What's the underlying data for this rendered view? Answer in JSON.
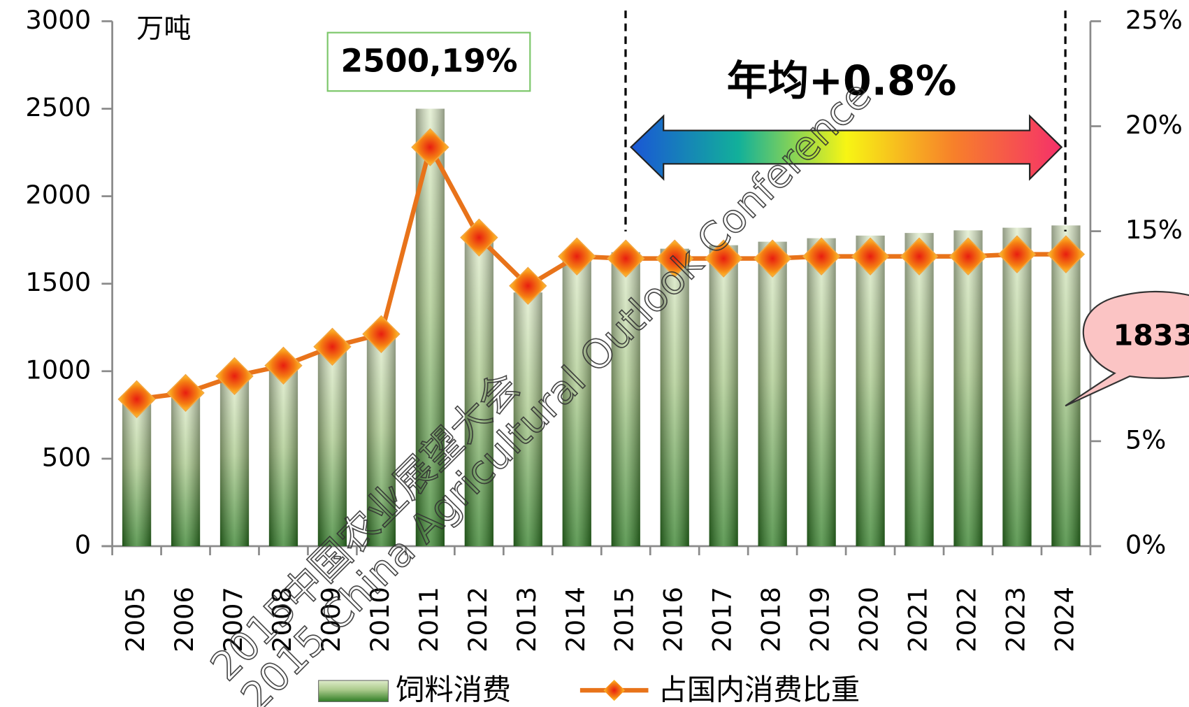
{
  "chart_data": {
    "type": "bar_line",
    "y_axis_unit": "万吨",
    "categories": [
      "2005",
      "2006",
      "2007",
      "2008",
      "2009",
      "2010",
      "2011",
      "2012",
      "2013",
      "2014",
      "2015",
      "2016",
      "2017",
      "2018",
      "2019",
      "2020",
      "2021",
      "2022",
      "2023",
      "2024"
    ],
    "series": [
      {
        "name": "饲料消费",
        "type": "bar",
        "color": "#2f7d24",
        "values": [
          845,
          860,
          950,
          1030,
          1120,
          1200,
          2500,
          1750,
          1450,
          1660,
          1680,
          1700,
          1720,
          1740,
          1760,
          1775,
          1790,
          1805,
          1820,
          1833
        ]
      },
      {
        "name": "占国内消费比重",
        "type": "line",
        "axis": "y2",
        "color": "#e8731a",
        "values": [
          7.0,
          7.3,
          8.1,
          8.6,
          9.5,
          10.1,
          19,
          14.7,
          12.4,
          13.8,
          13.7,
          13.7,
          13.7,
          13.7,
          13.8,
          13.8,
          13.8,
          13.8,
          13.9,
          13.9
        ]
      }
    ],
    "ylim": [
      0,
      3000
    ],
    "yticks": [
      0,
      500,
      1000,
      1500,
      2000,
      2500,
      3000
    ],
    "y2lim": [
      0,
      25
    ],
    "y2ticks": [
      {
        "value": 0,
        "label": "0%"
      },
      {
        "value": 5,
        "label": "5%"
      },
      {
        "value": 10,
        "label": "10%"
      },
      {
        "value": 15,
        "label": "15%"
      },
      {
        "value": 20,
        "label": "20%"
      },
      {
        "value": 25,
        "label": "25%"
      }
    ],
    "annotations": [
      "2500,19%",
      "年均+0.8%",
      "1833"
    ],
    "watermark": [
      "2015中国农业展望大会",
      "2015 China Agricultural Outlook Conference"
    ],
    "legend": "bottom"
  }
}
